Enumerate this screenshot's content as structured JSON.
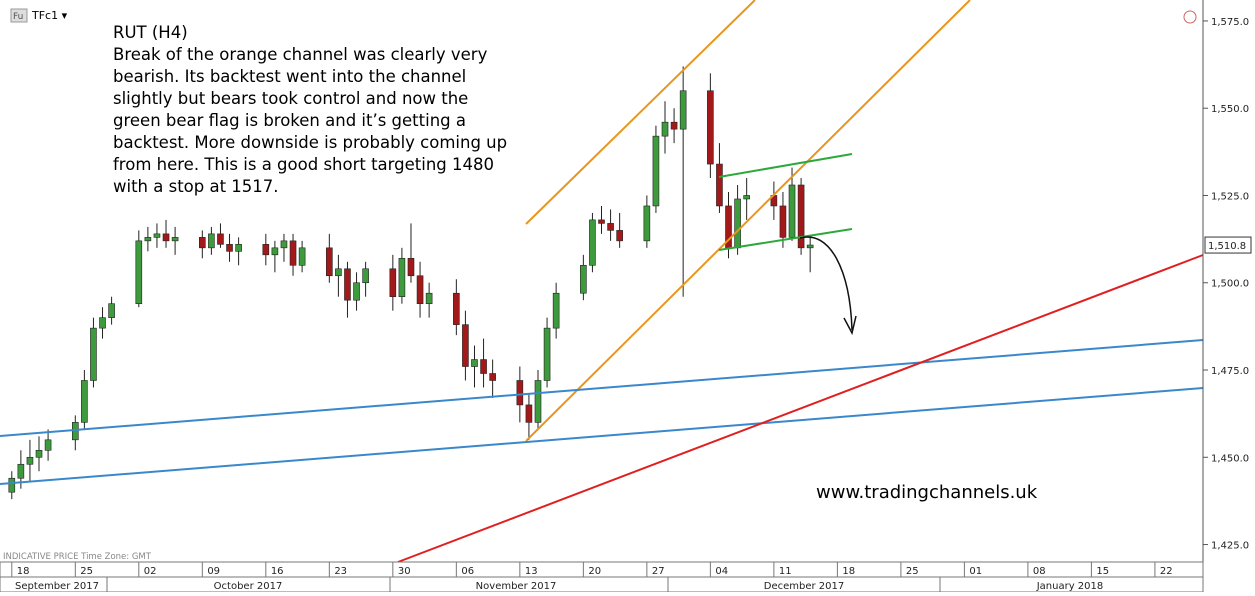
{
  "chart_data": {
    "type": "candlestick",
    "symbol_badge": "Fu",
    "symbol": "TFc1 ▾",
    "annotation": [
      "RUT (H4)",
      "Break of the orange channel was clearly very",
      "bearish. Its backtest went into the channel",
      "slightly but bears took control and now the",
      "green bear flag is broken and it’s getting a",
      "backtest. More downside is probably coming up",
      "from here. This is a good short targeting 1480",
      "with a stop at 1517."
    ],
    "watermark": "www.tradingchannels.uk",
    "footer": "INDICATIVE PRICE   Time Zone: GMT",
    "up_color": "#3d9a3d",
    "down_color": "#a31919",
    "x": [
      0,
      1,
      2,
      3,
      4,
      7,
      8,
      9,
      10,
      11,
      14,
      15,
      16,
      17,
      18,
      21,
      22,
      23,
      24,
      25,
      28,
      29,
      30,
      31,
      32,
      35,
      36,
      37,
      38,
      39,
      42,
      43,
      44,
      45,
      46,
      49,
      50,
      51,
      52,
      53,
      56,
      57,
      58,
      59,
      60,
      63,
      64,
      65,
      66,
      67,
      70,
      71,
      72,
      73,
      74,
      77,
      78,
      79,
      80,
      81,
      84,
      85,
      86,
      87,
      88
    ],
    "open": [
      1440,
      1444,
      1448,
      1450,
      1452,
      1455,
      1460,
      1472,
      1487,
      1490,
      1494,
      1512,
      1513,
      1514,
      1512,
      1513,
      1510,
      1514,
      1511,
      1509,
      1511,
      1508,
      1510,
      1512,
      1505,
      1510,
      1502,
      1504,
      1495,
      1500,
      1504,
      1496,
      1507,
      1502,
      1494,
      1497,
      1488,
      1476,
      1478,
      1474,
      1472,
      1465,
      1460,
      1472,
      1487,
      1497,
      1505,
      1518,
      1517,
      1515,
      1512,
      1522,
      1542,
      1546,
      1544,
      1555,
      1534,
      1522,
      1510,
      1524,
      1525,
      1522,
      1513,
      1528,
      1510
    ],
    "high": [
      1446,
      1452,
      1455,
      1456,
      1458,
      1462,
      1475,
      1490,
      1493,
      1496,
      1515,
      1516,
      1517,
      1518,
      1516,
      1515,
      1516,
      1517,
      1514,
      1513,
      1514,
      1512,
      1514,
      1514,
      1512,
      1514,
      1508,
      1506,
      1503,
      1506,
      1508,
      1510,
      1517,
      1506,
      1500,
      1501,
      1492,
      1482,
      1484,
      1478,
      1476,
      1468,
      1475,
      1490,
      1500,
      1508,
      1520,
      1522,
      1521,
      1520,
      1525,
      1545,
      1552,
      1550,
      1562,
      1560,
      1540,
      1526,
      1528,
      1530,
      1529,
      1526,
      1533,
      1530,
      1513
    ],
    "low": [
      1438,
      1441,
      1443,
      1446,
      1449,
      1452,
      1458,
      1470,
      1484,
      1488,
      1493,
      1509,
      1510,
      1510,
      1508,
      1507,
      1508,
      1510,
      1506,
      1505,
      1505,
      1503,
      1506,
      1502,
      1503,
      1500,
      1496,
      1490,
      1492,
      1496,
      1492,
      1494,
      1500,
      1490,
      1490,
      1485,
      1472,
      1470,
      1470,
      1467,
      1460,
      1455,
      1458,
      1470,
      1484,
      1495,
      1503,
      1514,
      1512,
      1510,
      1510,
      1520,
      1537,
      1540,
      1496,
      1530,
      1520,
      1507,
      1508,
      1518,
      1518,
      1510,
      1512,
      1508,
      1503
    ],
    "close": [
      1444,
      1448,
      1450,
      1452,
      1455,
      1460,
      1472,
      1487,
      1490,
      1494,
      1512,
      1513,
      1514,
      1512,
      1513,
      1510,
      1514,
      1511,
      1509,
      1511,
      1508,
      1510,
      1512,
      1505,
      1510,
      1502,
      1504,
      1495,
      1500,
      1504,
      1496,
      1507,
      1502,
      1494,
      1497,
      1488,
      1476,
      1478,
      1474,
      1472,
      1465,
      1460,
      1472,
      1487,
      1497,
      1505,
      1518,
      1517,
      1515,
      1512,
      1522,
      1542,
      1546,
      1544,
      1555,
      1534,
      1522,
      1510,
      1524,
      1525,
      1522,
      1513,
      1528,
      1510,
      1510.8
    ],
    "last_price": {
      "value": 1510.8,
      "label": "1,510.8"
    },
    "ylim": [
      1420,
      1581
    ],
    "yticks": [
      {
        "value": 1425,
        "label": "1,425.0"
      },
      {
        "value": 1450,
        "label": "1,450.0"
      },
      {
        "value": 1475,
        "label": "1,475.0"
      },
      {
        "value": 1500,
        "label": "1,500.0"
      },
      {
        "value": 1525,
        "label": "1,525.0"
      },
      {
        "value": 1550,
        "label": "1,550.0"
      },
      {
        "value": 1575,
        "label": "1,575.0"
      }
    ],
    "xlim": [
      -1.3,
      131.3
    ],
    "xticks": [
      {
        "value": 0,
        "label": "18"
      },
      {
        "value": 7,
        "label": "25"
      },
      {
        "value": 14,
        "label": "02"
      },
      {
        "value": 21,
        "label": "09"
      },
      {
        "value": 28,
        "label": "16"
      },
      {
        "value": 35,
        "label": "23"
      },
      {
        "value": 42,
        "label": "30"
      },
      {
        "value": 49,
        "label": "06"
      },
      {
        "value": 56,
        "label": "13"
      },
      {
        "value": 63,
        "label": "20"
      },
      {
        "value": 70,
        "label": "27"
      },
      {
        "value": 77,
        "label": "04"
      },
      {
        "value": 84,
        "label": "11"
      },
      {
        "value": 91,
        "label": "18"
      },
      {
        "value": 98,
        "label": "25"
      },
      {
        "value": 105,
        "label": "01"
      },
      {
        "value": 112,
        "label": "08"
      },
      {
        "value": 119,
        "label": "15"
      },
      {
        "value": 126,
        "label": "22"
      }
    ],
    "month_labels": [
      "September 2017",
      "October 2017",
      "November 2017",
      "December 2017",
      "January 2018"
    ]
  }
}
